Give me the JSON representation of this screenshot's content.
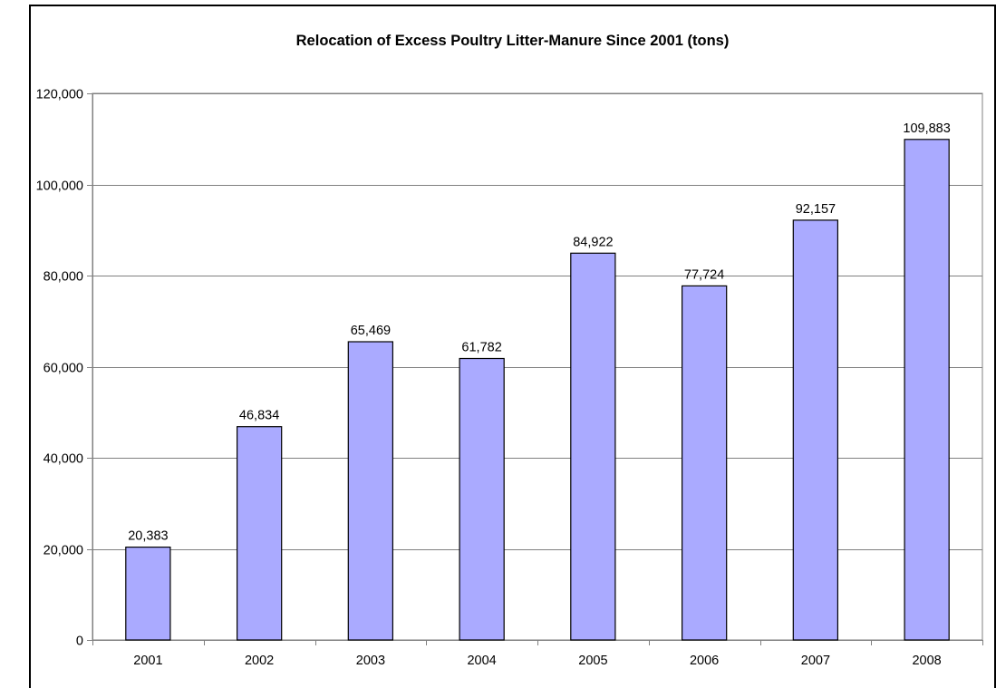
{
  "chart_data": {
    "type": "bar",
    "title": "Relocation of Excess Poultry Litter-Manure Since 2001 (tons)",
    "xlabel": "",
    "ylabel": "",
    "categories": [
      "2001",
      "2002",
      "2003",
      "2004",
      "2005",
      "2006",
      "2007",
      "2008"
    ],
    "values": [
      20383,
      46834,
      65469,
      61782,
      84922,
      77724,
      92157,
      109883
    ],
    "data_labels": [
      "20,383",
      "46,834",
      "65,469",
      "61,782",
      "84,922",
      "77,724",
      "92,157",
      "109,883"
    ],
    "ylim": [
      0,
      120000
    ],
    "yticks": [
      0,
      20000,
      40000,
      60000,
      80000,
      100000,
      120000
    ],
    "ytick_labels": [
      "0",
      "20,000",
      "40,000",
      "60,000",
      "80,000",
      "100,000",
      "120,000"
    ],
    "grid": true,
    "legend": "none",
    "bar_color": "#aaaaff",
    "bar_border_color": "#000000",
    "grid_color": "#808080"
  }
}
